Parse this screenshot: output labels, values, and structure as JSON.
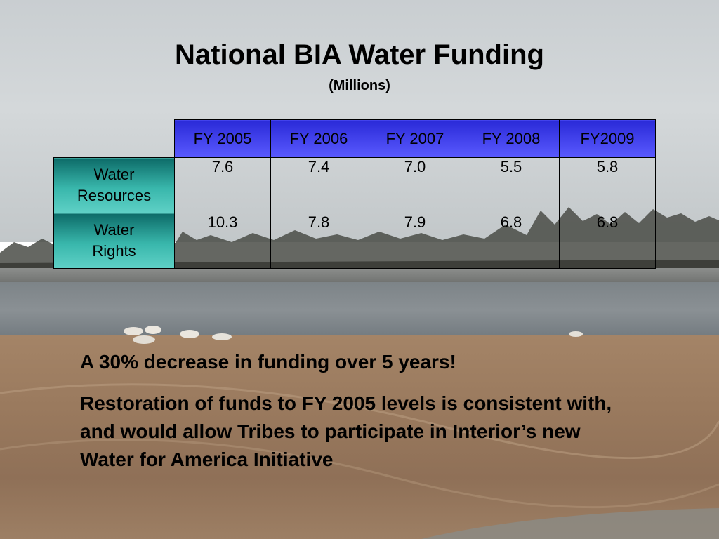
{
  "slide": {
    "title": "National BIA Water Funding",
    "subtitle": "(Millions)"
  },
  "table": {
    "headers": [
      "FY 2005",
      "FY 2006",
      "FY 2007",
      "FY 2008",
      "FY2009"
    ],
    "rows": [
      {
        "label_line1": "Water",
        "label_line2": "Resources",
        "values": [
          "7.6",
          "7.4",
          "7.0",
          "5.5",
          "5.8"
        ]
      },
      {
        "label_line1": "Water",
        "label_line2": "Rights",
        "values": [
          "10.3",
          "7.8",
          "7.9",
          "6.8",
          "6.8"
        ]
      }
    ]
  },
  "body": {
    "point1": "A 30% decrease in funding over 5 years!",
    "point2": "Restoration of funds to FY 2005 levels is consistent with, and would allow Tribes to participate in Interior’s new Water for America Initiative"
  },
  "colors": {
    "header_fill": "#3b3bf0",
    "rowhead_fill": "#2fa79c",
    "text": "#000000"
  }
}
